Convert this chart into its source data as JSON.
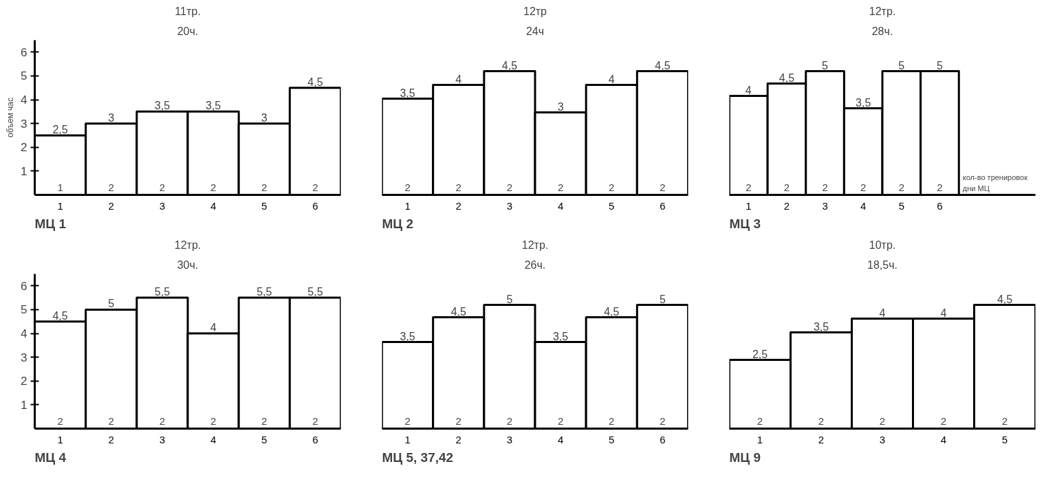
{
  "chart_data": [
    {
      "type": "bar",
      "title": "МЦ 1",
      "ylabel": "объем час",
      "categories": [
        "1",
        "2",
        "3",
        "4",
        "5",
        "6"
      ],
      "values": [
        2.5,
        3,
        3.5,
        3.5,
        3,
        4.5
      ],
      "value_labels": [
        "2,5",
        "3",
        "3,5",
        "3,5",
        "3",
        "4,5"
      ],
      "color": "#000000",
      "ylim": [
        0,
        6.5
      ],
      "yticks": [
        1,
        2,
        3,
        4,
        5,
        6
      ],
      "grid": false,
      "annotations": [
        "11тр.",
        "20ч.",
        "1",
        "2",
        "2",
        "2",
        "2",
        "2"
      ]
    },
    {
      "type": "bar",
      "title": "МЦ 2",
      "categories": [
        "1",
        "2",
        "3",
        "4",
        "5",
        "6"
      ],
      "values": [
        3.5,
        4,
        4.5,
        3,
        4,
        4.5
      ],
      "value_labels": [
        "3,5",
        "4",
        "4,5",
        "3",
        "4",
        "4,5"
      ],
      "color": "#000000",
      "tick_labels": "x",
      "grid": false,
      "annotations": [
        "12тр",
        "24ч",
        "2",
        "2",
        "2",
        "2",
        "2",
        "2"
      ]
    },
    {
      "type": "bar",
      "title": "МЦ 3",
      "categories": [
        "1",
        "2",
        "3",
        "4",
        "5",
        "6"
      ],
      "values": [
        4,
        4.5,
        5,
        3.5,
        5,
        5
      ],
      "value_labels": [
        "4",
        "4,5",
        "5",
        "3,5",
        "5",
        "5"
      ],
      "color": "#000000",
      "tick_labels": "x",
      "grid": false,
      "annotations": [
        "12тр.",
        "28ч.",
        "кол-во тренировок",
        "дни МЦ",
        "2",
        "2",
        "2",
        "2",
        "2",
        "2"
      ]
    },
    {
      "type": "bar",
      "title": "МЦ 4",
      "categories": [
        "1",
        "2",
        "3",
        "4",
        "5",
        "6"
      ],
      "values": [
        4.5,
        5,
        5.5,
        4,
        5.5,
        5.5
      ],
      "value_labels": [
        "4,5",
        "5",
        "5,5",
        "4",
        "5,5",
        "5,5"
      ],
      "color": "#000000",
      "ylim": [
        0,
        6.5
      ],
      "yticks": [
        1,
        2,
        3,
        4,
        5,
        6
      ],
      "grid": false,
      "annotations": [
        "12тр.",
        "30ч.",
        "2",
        "2",
        "2",
        "2",
        "2",
        "2"
      ]
    },
    {
      "type": "bar",
      "title": "МЦ 5, 37,42",
      "categories": [
        "1",
        "2",
        "3",
        "4",
        "5",
        "6"
      ],
      "values": [
        3.5,
        4.5,
        5,
        3.5,
        4.5,
        5
      ],
      "value_labels": [
        "3,5",
        "4,5",
        "5",
        "3,5",
        "4,5",
        "5"
      ],
      "color": "#000000",
      "tick_labels": "x",
      "grid": false,
      "annotations": [
        "12тр.",
        "26ч.",
        "2",
        "2",
        "2",
        "2",
        "2",
        "2"
      ]
    },
    {
      "type": "bar",
      "title": "МЦ 9",
      "categories": [
        "1",
        "2",
        "3",
        "4",
        "5"
      ],
      "values": [
        2.5,
        3.5,
        4,
        4,
        4.5
      ],
      "value_labels": [
        "2,5",
        "3,5",
        "4",
        "4",
        "4,5"
      ],
      "color": "#000000",
      "tick_labels": "x",
      "grid": false,
      "annotations": [
        "10тр.",
        "18,5ч.",
        "2",
        "2",
        "2",
        "2",
        "2"
      ]
    }
  ]
}
